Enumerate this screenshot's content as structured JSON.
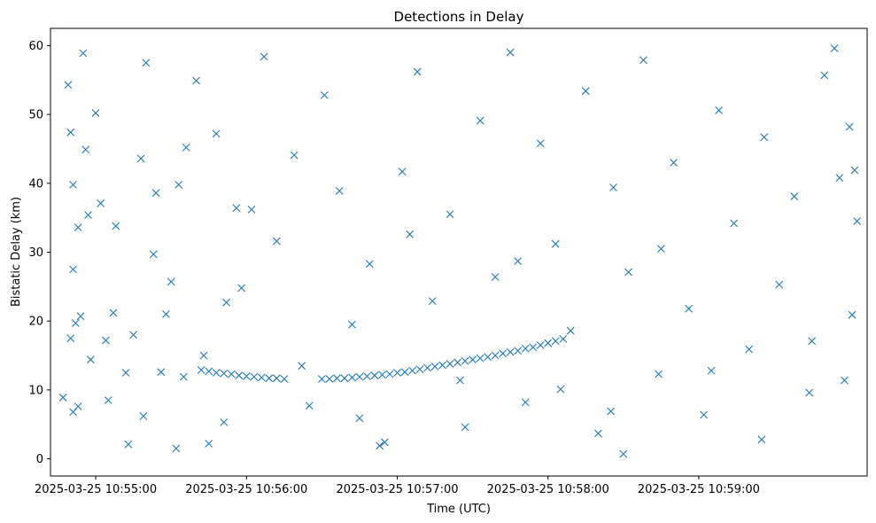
{
  "chart_data": {
    "type": "scatter",
    "title": "Detections in Delay",
    "xlabel": "Time (UTC)",
    "ylabel": "Bistatic Delay (km)",
    "x_axis_type": "time",
    "xlim": [
      "2025-03-25 10:54:42",
      "2025-03-25 11:00:07"
    ],
    "ylim": [
      -2.5,
      62.5
    ],
    "xticks": [
      {
        "value": "2025-03-25 10:55:00",
        "label": "2025-03-25 10:55:00"
      },
      {
        "value": "2025-03-25 10:56:00",
        "label": "2025-03-25 10:56:00"
      },
      {
        "value": "2025-03-25 10:57:00",
        "label": "2025-03-25 10:57:00"
      },
      {
        "value": "2025-03-25 10:58:00",
        "label": "2025-03-25 10:58:00"
      },
      {
        "value": "2025-03-25 10:59:00",
        "label": "2025-03-25 10:59:00"
      }
    ],
    "yticks": [
      {
        "value": 0,
        "label": "0"
      },
      {
        "value": 10,
        "label": "10"
      },
      {
        "value": 20,
        "label": "20"
      },
      {
        "value": 30,
        "label": "30"
      },
      {
        "value": 40,
        "label": "40"
      },
      {
        "value": 50,
        "label": "50"
      },
      {
        "value": 60,
        "label": "60"
      }
    ],
    "grid": false,
    "legend": "none",
    "marker": "x",
    "color": "#1f77b4",
    "series": [
      {
        "points": [
          [
            "2025-03-25 10:55:00",
            50.2
          ],
          [
            "2025-03-25 10:55:20",
            57.5
          ],
          [
            "2025-03-25 10:54:51",
            27.5
          ],
          [
            "2025-03-25 10:55:33",
            39.8
          ],
          [
            "2025-03-25 10:55:13",
            2.1
          ],
          [
            "2025-03-25 10:55:36",
            45.2
          ],
          [
            "2025-03-25 10:54:55",
            58.9
          ],
          [
            "2025-03-25 10:55:04",
            17.2
          ],
          [
            "2025-03-25 10:55:26",
            12.6
          ],
          [
            "2025-03-25 10:55:08",
            33.8
          ],
          [
            "2025-03-25 10:55:28",
            21.0
          ],
          [
            "2025-03-25 10:55:40",
            54.9
          ],
          [
            "2025-03-25 10:55:18",
            43.6
          ],
          [
            "2025-03-25 10:54:47",
            8.9
          ],
          [
            "2025-03-25 10:55:23",
            29.7
          ],
          [
            "2025-03-25 10:55:48",
            47.2
          ],
          [
            "2025-03-25 10:55:56",
            36.4
          ],
          [
            "2025-03-25 10:55:51",
            5.3
          ],
          [
            "2025-03-25 10:55:58",
            24.8
          ],
          [
            "2025-03-25 10:55:43",
            15.0
          ],
          [
            "2025-03-25 10:56:07",
            58.4
          ],
          [
            "2025-03-25 10:56:12",
            31.6
          ],
          [
            "2025-03-25 10:56:19",
            44.1
          ],
          [
            "2025-03-25 10:56:25",
            7.7
          ],
          [
            "2025-03-25 10:56:31",
            52.8
          ],
          [
            "2025-03-25 10:56:37",
            38.9
          ],
          [
            "2025-03-25 10:56:42",
            19.5
          ],
          [
            "2025-03-25 10:56:49",
            28.3
          ],
          [
            "2025-03-25 10:56:55",
            2.4
          ],
          [
            "2025-03-25 10:57:02",
            41.7
          ],
          [
            "2025-03-25 10:57:08",
            56.2
          ],
          [
            "2025-03-25 10:57:14",
            22.9
          ],
          [
            "2025-03-25 10:57:21",
            35.5
          ],
          [
            "2025-03-25 10:57:27",
            4.6
          ],
          [
            "2025-03-25 10:57:33",
            49.1
          ],
          [
            "2025-03-25 10:57:39",
            26.4
          ],
          [
            "2025-03-25 10:57:45",
            59.0
          ],
          [
            "2025-03-25 10:57:51",
            8.2
          ],
          [
            "2025-03-25 10:57:57",
            45.8
          ],
          [
            "2025-03-25 10:58:03",
            31.2
          ],
          [
            "2025-03-25 10:58:09",
            18.6
          ],
          [
            "2025-03-25 10:58:15",
            53.4
          ],
          [
            "2025-03-25 10:58:20",
            3.7
          ],
          [
            "2025-03-25 10:58:26",
            39.4
          ],
          [
            "2025-03-25 10:58:32",
            27.1
          ],
          [
            "2025-03-25 10:58:38",
            57.9
          ],
          [
            "2025-03-25 10:58:44",
            12.3
          ],
          [
            "2025-03-25 10:58:50",
            43.0
          ],
          [
            "2025-03-25 10:58:56",
            21.8
          ],
          [
            "2025-03-25 10:59:02",
            6.4
          ],
          [
            "2025-03-25 10:59:08",
            50.6
          ],
          [
            "2025-03-25 10:59:14",
            34.2
          ],
          [
            "2025-03-25 10:59:20",
            15.9
          ],
          [
            "2025-03-25 10:59:26",
            46.7
          ],
          [
            "2025-03-25 10:59:32",
            25.3
          ],
          [
            "2025-03-25 10:59:38",
            38.1
          ],
          [
            "2025-03-25 10:59:44",
            9.6
          ],
          [
            "2025-03-25 10:59:50",
            55.7
          ],
          [
            "2025-03-25 10:59:56",
            40.8
          ],
          [
            "2025-03-25 11:00:01",
            20.9
          ],
          [
            "2025-03-25 10:54:49",
            54.3
          ],
          [
            "2025-03-25 10:54:50",
            47.4
          ],
          [
            "2025-03-25 10:54:51",
            39.8
          ],
          [
            "2025-03-25 10:54:50",
            17.5
          ],
          [
            "2025-03-25 10:54:51",
            6.8
          ],
          [
            "2025-03-25 10:54:53",
            7.6
          ],
          [
            "2025-03-25 10:54:52",
            19.7
          ],
          [
            "2025-03-25 10:54:54",
            20.7
          ],
          [
            "2025-03-25 10:54:53",
            33.6
          ],
          [
            "2025-03-25 10:54:56",
            44.9
          ],
          [
            "2025-03-25 10:54:57",
            35.4
          ],
          [
            "2025-03-25 10:54:58",
            14.4
          ],
          [
            "2025-03-25 10:55:02",
            37.1
          ],
          [
            "2025-03-25 10:55:05",
            8.5
          ],
          [
            "2025-03-25 10:55:07",
            21.2
          ],
          [
            "2025-03-25 10:55:12",
            12.5
          ],
          [
            "2025-03-25 10:55:15",
            18.0
          ],
          [
            "2025-03-25 10:55:19",
            6.2
          ],
          [
            "2025-03-25 10:55:24",
            38.6
          ],
          [
            "2025-03-25 10:55:30",
            25.7
          ],
          [
            "2025-03-25 10:55:35",
            11.9
          ],
          [
            "2025-03-25 10:55:45",
            2.2
          ],
          [
            "2025-03-25 10:55:52",
            22.7
          ],
          [
            "2025-03-25 10:56:02",
            36.2
          ],
          [
            "2025-03-25 10:56:22",
            13.5
          ],
          [
            "2025-03-25 10:56:45",
            5.9
          ],
          [
            "2025-03-25 10:57:05",
            32.6
          ],
          [
            "2025-03-25 10:57:25",
            11.4
          ],
          [
            "2025-03-25 10:57:48",
            28.7
          ],
          [
            "2025-03-25 10:58:05",
            10.1
          ],
          [
            "2025-03-25 10:58:25",
            6.9
          ],
          [
            "2025-03-25 10:58:45",
            30.5
          ],
          [
            "2025-03-25 10:59:05",
            12.8
          ],
          [
            "2025-03-25 10:59:25",
            2.8
          ],
          [
            "2025-03-25 10:59:45",
            17.1
          ],
          [
            "2025-03-25 11:00:00",
            48.2
          ],
          [
            "2025-03-25 11:00:03",
            34.5
          ],
          [
            "2025-03-25 11:00:02",
            41.9
          ],
          [
            "2025-03-25 10:59:58",
            11.4
          ],
          [
            "2025-03-25 10:59:54",
            59.6
          ],
          [
            "2025-03-25 10:58:30",
            0.7
          ],
          [
            "2025-03-25 10:55:32",
            1.5
          ],
          [
            "2025-03-25 10:56:53",
            1.9
          ],
          [
            "2025-03-25 10:55:42",
            12.9
          ],
          [
            "2025-03-25 10:55:45",
            12.7
          ],
          [
            "2025-03-25 10:55:48",
            12.5
          ],
          [
            "2025-03-25 10:55:51",
            12.4
          ],
          [
            "2025-03-25 10:55:54",
            12.3
          ],
          [
            "2025-03-25 10:55:57",
            12.1
          ],
          [
            "2025-03-25 10:56:00",
            12.0
          ],
          [
            "2025-03-25 10:56:03",
            11.9
          ],
          [
            "2025-03-25 10:56:06",
            11.8
          ],
          [
            "2025-03-25 10:56:09",
            11.7
          ],
          [
            "2025-03-25 10:56:12",
            11.7
          ],
          [
            "2025-03-25 10:56:15",
            11.6
          ],
          [
            "2025-03-25 10:56:30",
            11.6
          ],
          [
            "2025-03-25 10:56:33",
            11.6
          ],
          [
            "2025-03-25 10:56:36",
            11.7
          ],
          [
            "2025-03-25 10:56:39",
            11.7
          ],
          [
            "2025-03-25 10:56:42",
            11.8
          ],
          [
            "2025-03-25 10:56:45",
            11.9
          ],
          [
            "2025-03-25 10:56:48",
            12.0
          ],
          [
            "2025-03-25 10:56:51",
            12.1
          ],
          [
            "2025-03-25 10:56:54",
            12.2
          ],
          [
            "2025-03-25 10:56:57",
            12.3
          ],
          [
            "2025-03-25 10:57:00",
            12.5
          ],
          [
            "2025-03-25 10:57:03",
            12.6
          ],
          [
            "2025-03-25 10:57:06",
            12.8
          ],
          [
            "2025-03-25 10:57:09",
            13.0
          ],
          [
            "2025-03-25 10:57:12",
            13.2
          ],
          [
            "2025-03-25 10:57:15",
            13.4
          ],
          [
            "2025-03-25 10:57:18",
            13.6
          ],
          [
            "2025-03-25 10:57:21",
            13.8
          ],
          [
            "2025-03-25 10:57:24",
            14.0
          ],
          [
            "2025-03-25 10:57:27",
            14.2
          ],
          [
            "2025-03-25 10:57:30",
            14.4
          ],
          [
            "2025-03-25 10:57:33",
            14.6
          ],
          [
            "2025-03-25 10:57:36",
            14.8
          ],
          [
            "2025-03-25 10:57:39",
            15.0
          ],
          [
            "2025-03-25 10:57:42",
            15.3
          ],
          [
            "2025-03-25 10:57:45",
            15.5
          ],
          [
            "2025-03-25 10:57:48",
            15.7
          ],
          [
            "2025-03-25 10:57:51",
            16.0
          ],
          [
            "2025-03-25 10:57:54",
            16.2
          ],
          [
            "2025-03-25 10:57:57",
            16.5
          ],
          [
            "2025-03-25 10:58:00",
            16.8
          ],
          [
            "2025-03-25 10:58:03",
            17.1
          ],
          [
            "2025-03-25 10:58:06",
            17.4
          ]
        ]
      }
    ]
  }
}
